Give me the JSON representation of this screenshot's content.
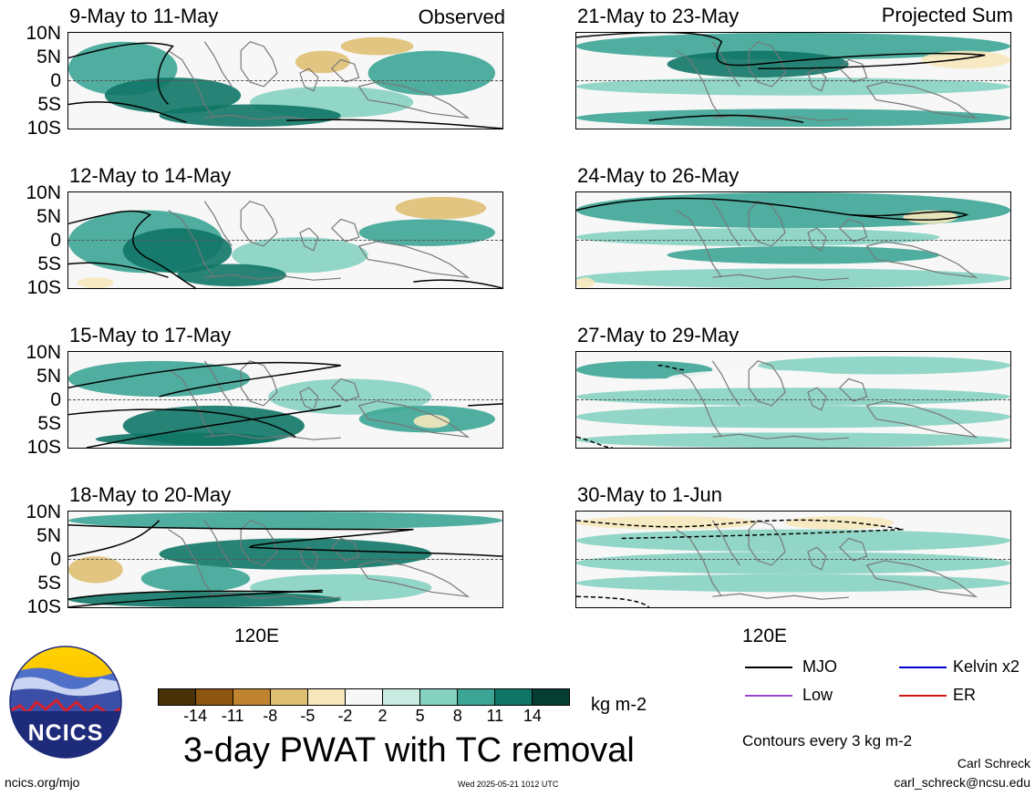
{
  "observed_label": "Observed",
  "projected_label": "Projected Sum",
  "lat_labels": [
    "10N",
    "5N",
    "0",
    "5S",
    "10S"
  ],
  "lon_label": "120E",
  "panels_left": [
    {
      "title": "9-May to 11-May"
    },
    {
      "title": "12-May to 14-May"
    },
    {
      "title": "15-May to 17-May"
    },
    {
      "title": "18-May to 20-May"
    }
  ],
  "panels_right": [
    {
      "title": "21-May to 23-May"
    },
    {
      "title": "24-May to 26-May"
    },
    {
      "title": "27-May to 29-May"
    },
    {
      "title": "30-May to 1-Jun"
    }
  ],
  "colorbar": {
    "labels": [
      "-14",
      "-11",
      "-8",
      "-5",
      "-2",
      "2",
      "5",
      "8",
      "11",
      "14"
    ],
    "colors": [
      "#4a3208",
      "#8c5610",
      "#c08430",
      "#dfbf72",
      "#f6e8bc",
      "#f7f7f7",
      "#c9ebe1",
      "#86d2c1",
      "#3ca595",
      "#0f7566",
      "#063d33"
    ],
    "unit": "kg m-2"
  },
  "legend": {
    "items": [
      {
        "label": "MJO",
        "color": "#000000"
      },
      {
        "label": "Kelvin x2",
        "color": "#0000cc"
      },
      {
        "label": "Low",
        "color": "#9b45d6"
      },
      {
        "label": "ER",
        "color": "#d41515"
      }
    ],
    "contour_note": "Contours every 3 kg m-2"
  },
  "main_title": "3-day PWAT with TC removal",
  "logo_text": "NCICS",
  "footer": {
    "url": "ncics.org/mjo",
    "timestamp": "Wed 2025-05-21 1012 UTC",
    "author": "Carl Schreck",
    "email": "carl_schreck@ncsu.edu"
  }
}
